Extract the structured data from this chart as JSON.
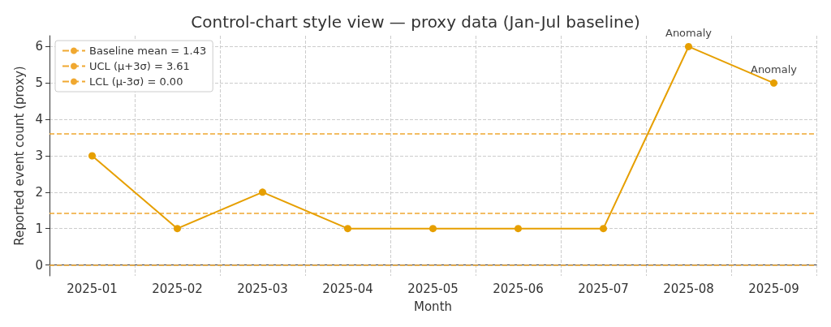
{
  "chart_data": {
    "type": "line",
    "title": "Control-chart style view — proxy data (Jan-Jul baseline)",
    "xlabel": "Month",
    "ylabel": "Reported event count (proxy)",
    "categories": [
      "2025-01",
      "2025-02",
      "2025-03",
      "2025-04",
      "2025-05",
      "2025-06",
      "2025-07",
      "2025-08",
      "2025-09"
    ],
    "series": [
      {
        "color": "#e69f00",
        "values": [
          3,
          1,
          2,
          1,
          1,
          1,
          1,
          6,
          5
        ]
      }
    ],
    "ref_lines": [
      {
        "axis": "y",
        "value": 1.43,
        "label": "Baseline mean = 1.43",
        "color": "#f0a830",
        "line_style": "dashed"
      },
      {
        "axis": "y",
        "value": 3.61,
        "label": "UCL (μ+3σ) = 3.61",
        "color": "#f0a830",
        "line_style": "dashed"
      },
      {
        "axis": "y",
        "value": 0,
        "label": "LCL (μ-3σ) = 0.00",
        "color": "#f0a830",
        "line_style": "dashed"
      }
    ],
    "annotations": [
      {
        "text": "Anomaly",
        "x": "2025-08",
        "y": 6
      },
      {
        "text": "Anomaly",
        "x": "2025-09",
        "y": 5
      }
    ],
    "ylim": [
      -0.3,
      6.3
    ],
    "yticks": [
      0,
      1,
      2,
      3,
      4,
      5,
      6
    ],
    "grid": true,
    "legend": "top left",
    "marker": "circle",
    "line_style": "solid"
  }
}
